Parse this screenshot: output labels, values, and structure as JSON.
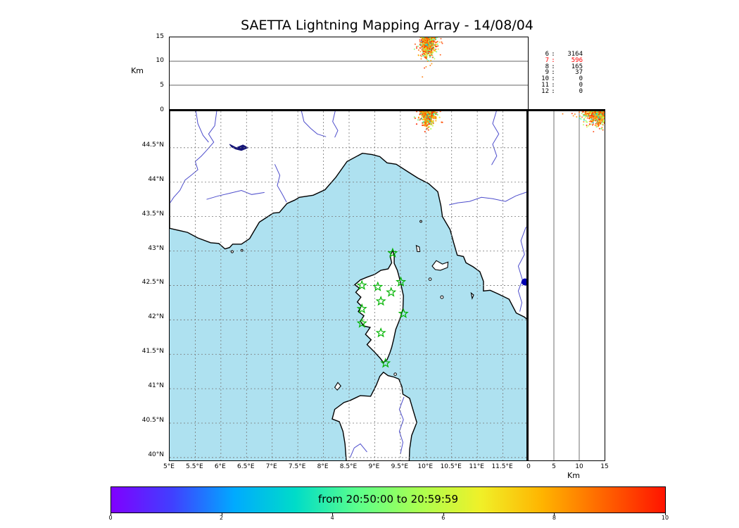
{
  "title": "SAETTA Lightning Mapping Array - 14/08/04",
  "colors": {
    "sea": "#aee1f0",
    "land": "#ffffff",
    "coast": "#000000",
    "river": "#4d4dcc",
    "lake": "#141478",
    "lake_bolsena": "#0000b0",
    "station_star": "#00b400",
    "grid": "#777777",
    "panel_grid": "#333333",
    "highlight_count": "#ff0000",
    "colorbar_stops": [
      "#8000ff",
      "#4040ff",
      "#00aaff",
      "#00dcc8",
      "#5aff8c",
      "#aaff50",
      "#f0f028",
      "#ffb400",
      "#ff6400",
      "#ff1400"
    ]
  },
  "top_panel": {
    "ylabel": "Km",
    "alt_max_km": 15,
    "yticks": [
      {
        "km": 0,
        "label": "0"
      },
      {
        "km": 5,
        "label": "5"
      },
      {
        "km": 10,
        "label": "10"
      },
      {
        "km": 15,
        "label": "15"
      }
    ],
    "grid_km": [
      5,
      10
    ]
  },
  "right_panel": {
    "xlabel": "Km",
    "alt_max_km": 15,
    "xticks": [
      {
        "km": 0,
        "label": "0"
      },
      {
        "km": 5,
        "label": "5"
      },
      {
        "km": 10,
        "label": "10"
      },
      {
        "km": 15,
        "label": "15"
      }
    ],
    "grid_km": [
      5,
      10
    ]
  },
  "map_panel": {
    "lat_ticks": [
      {
        "lat": 44.5,
        "label": "44.5°N"
      },
      {
        "lat": 44,
        "label": "44°N"
      },
      {
        "lat": 43.5,
        "label": "43.5°N"
      },
      {
        "lat": 43,
        "label": "43°N"
      },
      {
        "lat": 42.5,
        "label": "42.5°N"
      },
      {
        "lat": 42,
        "label": "42°N"
      },
      {
        "lat": 41.5,
        "label": "41.5°N"
      },
      {
        "lat": 41,
        "label": "41°N"
      },
      {
        "lat": 40.5,
        "label": "40.5°N"
      },
      {
        "lat": 40,
        "label": "40°N"
      }
    ],
    "lon_ticks": [
      {
        "lon": 5,
        "label": "5°E"
      },
      {
        "lon": 5.5,
        "label": "5.5°E"
      },
      {
        "lon": 6,
        "label": "6°E"
      },
      {
        "lon": 6.5,
        "label": "6.5°E"
      },
      {
        "lon": 7,
        "label": "7°E"
      },
      {
        "lon": 7.5,
        "label": "7.5°E"
      },
      {
        "lon": 8,
        "label": "8°E"
      },
      {
        "lon": 8.5,
        "label": "8.5°E"
      },
      {
        "lon": 9,
        "label": "9°E"
      },
      {
        "lon": 9.5,
        "label": "9.5°E"
      },
      {
        "lon": 10,
        "label": "10°E"
      },
      {
        "lon": 10.5,
        "label": "10.5°E"
      },
      {
        "lon": 11,
        "label": "11°E"
      },
      {
        "lon": 11.5,
        "label": "11.5°E"
      }
    ],
    "grid_step_deg": 0.5
  },
  "station_counts": {
    "rows": [
      {
        "stations": "6",
        "count": "3164",
        "highlight": false
      },
      {
        "stations": "7",
        "count": "596",
        "highlight": true
      },
      {
        "stations": "8",
        "count": "165",
        "highlight": false
      },
      {
        "stations": "9",
        "count": "37",
        "highlight": false
      },
      {
        "stations": "10",
        "count": "0",
        "highlight": false
      },
      {
        "stations": "11",
        "count": "0",
        "highlight": false
      },
      {
        "stations": "12",
        "count": "0",
        "highlight": false
      }
    ]
  },
  "colorbar": {
    "label": "from 20:50:00 to 20:59:59",
    "min": 0,
    "max": 10,
    "ticks": [
      {
        "v": 0,
        "label": "0"
      },
      {
        "v": 2,
        "label": "2"
      },
      {
        "v": 4,
        "label": "4"
      },
      {
        "v": 6,
        "label": "6"
      },
      {
        "v": 8,
        "label": "8"
      },
      {
        "v": 10,
        "label": "10"
      }
    ]
  },
  "chart_data": {
    "type": "scatter",
    "title": "SAETTA Lightning Mapping Array - 14/08/04",
    "time_window": {
      "start": "20:50:00",
      "end": "20:59:59"
    },
    "geo": {
      "lon_range": [
        5,
        12
      ],
      "lat_range": [
        39.95,
        45.05
      ],
      "alt_range_km": [
        0,
        15
      ]
    },
    "station_counts": {
      "6": 3164,
      "7": 596,
      "8": 165,
      "9": 37,
      "10": 0,
      "11": 0,
      "12": 0
    },
    "lightning_cluster": {
      "n": 650,
      "seed": 7,
      "lon_mean": 10.04,
      "lon_sd": 0.07,
      "lat_top": 45.06,
      "lat_sd": 0.1,
      "alt_top_km": 15,
      "alt_sd_km": 1.9,
      "alt_min_km": 6.5,
      "time_mix": [
        {
          "w": 0.65,
          "t0": 0.78,
          "t1": 1.0
        },
        {
          "w": 0.2,
          "t0": 0.52,
          "t1": 0.76
        },
        {
          "w": 0.15,
          "t0": 0.28,
          "t1": 0.52
        }
      ]
    },
    "lma_stations_lonlat": [
      [
        9.35,
        42.97
      ],
      [
        8.75,
        42.5
      ],
      [
        9.06,
        42.48
      ],
      [
        9.51,
        42.55
      ],
      [
        9.32,
        42.4
      ],
      [
        9.12,
        42.27
      ],
      [
        8.75,
        42.16
      ],
      [
        9.56,
        42.09
      ],
      [
        8.75,
        41.95
      ],
      [
        9.12,
        41.81
      ],
      [
        9.21,
        41.37
      ]
    ],
    "lake_bolsena_lonlat": [
      11.93,
      42.55
    ]
  },
  "map_geo": {
    "mainland": [
      [
        5,
        45.1
      ],
      [
        5,
        43.33
      ],
      [
        5.35,
        43.27
      ],
      [
        5.55,
        43.19
      ],
      [
        5.8,
        43.12
      ],
      [
        5.96,
        43.11
      ],
      [
        6.08,
        43.03
      ],
      [
        6.17,
        43.05
      ],
      [
        6.23,
        43.1
      ],
      [
        6.4,
        43.1
      ],
      [
        6.56,
        43.18
      ],
      [
        6.63,
        43.27
      ],
      [
        6.75,
        43.42
      ],
      [
        7.02,
        43.55
      ],
      [
        7.14,
        43.56
      ],
      [
        7.29,
        43.69
      ],
      [
        7.44,
        43.74
      ],
      [
        7.53,
        43.78
      ],
      [
        7.8,
        43.81
      ],
      [
        8.03,
        43.89
      ],
      [
        8.24,
        44.07
      ],
      [
        8.46,
        44.3
      ],
      [
        8.76,
        44.42
      ],
      [
        8.95,
        44.4
      ],
      [
        9.1,
        44.37
      ],
      [
        9.24,
        44.28
      ],
      [
        9.42,
        44.26
      ],
      [
        9.65,
        44.15
      ],
      [
        9.84,
        44.06
      ],
      [
        10.05,
        43.98
      ],
      [
        10.23,
        43.86
      ],
      [
        10.29,
        43.66
      ],
      [
        10.32,
        43.5
      ],
      [
        10.47,
        43.31
      ],
      [
        10.54,
        43.12
      ],
      [
        10.61,
        42.94
      ],
      [
        10.73,
        42.92
      ],
      [
        10.78,
        42.83
      ],
      [
        10.92,
        42.77
      ],
      [
        11.05,
        42.7
      ],
      [
        11.12,
        42.56
      ],
      [
        11.12,
        42.42
      ],
      [
        11.25,
        42.43
      ],
      [
        11.4,
        42.38
      ],
      [
        11.62,
        42.3
      ],
      [
        11.76,
        42.1
      ],
      [
        11.92,
        42.04
      ],
      [
        12.05,
        41.96
      ],
      [
        12.05,
        45.1
      ]
    ],
    "corsica": [
      [
        9.35,
        43.01
      ],
      [
        9.3,
        42.93
      ],
      [
        9.33,
        42.83
      ],
      [
        9.26,
        42.74
      ],
      [
        9.12,
        42.72
      ],
      [
        9.0,
        42.66
      ],
      [
        8.85,
        42.62
      ],
      [
        8.72,
        42.58
      ],
      [
        8.61,
        42.51
      ],
      [
        8.7,
        42.46
      ],
      [
        8.63,
        42.4
      ],
      [
        8.73,
        42.33
      ],
      [
        8.66,
        42.26
      ],
      [
        8.74,
        42.2
      ],
      [
        8.68,
        42.12
      ],
      [
        8.79,
        42.06
      ],
      [
        8.72,
        41.98
      ],
      [
        8.79,
        41.91
      ],
      [
        8.91,
        41.89
      ],
      [
        8.82,
        41.79
      ],
      [
        8.93,
        41.71
      ],
      [
        8.85,
        41.64
      ],
      [
        9.0,
        41.53
      ],
      [
        9.11,
        41.44
      ],
      [
        9.17,
        41.38
      ],
      [
        9.24,
        41.42
      ],
      [
        9.29,
        41.51
      ],
      [
        9.33,
        41.6
      ],
      [
        9.37,
        41.72
      ],
      [
        9.41,
        41.86
      ],
      [
        9.49,
        42.01
      ],
      [
        9.55,
        42.16
      ],
      [
        9.56,
        42.35
      ],
      [
        9.5,
        42.55
      ],
      [
        9.46,
        42.67
      ],
      [
        9.44,
        42.72
      ],
      [
        9.38,
        42.82
      ],
      [
        9.38,
        42.93
      ]
    ],
    "sardinia": [
      [
        8.45,
        39.9
      ],
      [
        8.42,
        40.2
      ],
      [
        8.38,
        40.38
      ],
      [
        8.31,
        40.52
      ],
      [
        8.17,
        40.56
      ],
      [
        8.22,
        40.7
      ],
      [
        8.4,
        40.8
      ],
      [
        8.52,
        40.83
      ],
      [
        8.72,
        40.9
      ],
      [
        8.92,
        40.89
      ],
      [
        9.03,
        41.05
      ],
      [
        9.1,
        41.18
      ],
      [
        9.17,
        41.24
      ],
      [
        9.26,
        41.19
      ],
      [
        9.37,
        41.17
      ],
      [
        9.47,
        41.14
      ],
      [
        9.53,
        41.03
      ],
      [
        9.55,
        40.92
      ],
      [
        9.68,
        40.86
      ],
      [
        9.76,
        40.66
      ],
      [
        9.82,
        40.51
      ],
      [
        9.72,
        40.32
      ],
      [
        9.68,
        40.12
      ],
      [
        9.67,
        39.9
      ]
    ],
    "islands": [
      [
        [
          10.12,
          42.78
        ],
        [
          10.2,
          42.86
        ],
        [
          10.32,
          42.81
        ],
        [
          10.43,
          42.84
        ],
        [
          10.42,
          42.76
        ],
        [
          10.28,
          42.72
        ],
        [
          10.18,
          42.73
        ]
      ],
      [
        [
          9.81,
          43.08
        ],
        [
          9.87,
          43.06
        ],
        [
          9.88,
          42.99
        ],
        [
          9.83,
          42.99
        ]
      ],
      [
        [
          8.22,
          41.02
        ],
        [
          8.28,
          41.09
        ],
        [
          8.34,
          41.04
        ],
        [
          8.27,
          40.98
        ]
      ],
      [
        [
          10.88,
          42.39
        ],
        [
          10.93,
          42.36
        ],
        [
          10.9,
          42.31
        ]
      ]
    ],
    "islands_small": [
      [
        9.9,
        43.43,
        1.4
      ],
      [
        10.08,
        42.59,
        1.8
      ],
      [
        10.31,
        42.33,
        2.0
      ],
      [
        9.4,
        41.21,
        1.8
      ],
      [
        6.22,
        42.99,
        1.6
      ],
      [
        6.41,
        43.01,
        1.4
      ]
    ],
    "lake_serre_poncon": [
      [
        6.17,
        44.55
      ],
      [
        6.3,
        44.5
      ],
      [
        6.43,
        44.54
      ],
      [
        6.53,
        44.5
      ],
      [
        6.4,
        44.46
      ],
      [
        6.29,
        44.48
      ],
      [
        6.21,
        44.51
      ]
    ],
    "rivers": [
      [
        [
          5.93,
          45.1
        ],
        [
          5.88,
          44.82
        ],
        [
          5.76,
          44.7
        ],
        [
          5.86,
          44.58
        ],
        [
          5.72,
          44.46
        ],
        [
          5.62,
          44.38
        ],
        [
          5.5,
          44.3
        ],
        [
          5.55,
          44.18
        ],
        [
          5.42,
          44.1
        ],
        [
          5.3,
          44.03
        ],
        [
          5.2,
          43.88
        ],
        [
          5.08,
          43.78
        ],
        [
          5.01,
          43.7
        ]
      ],
      [
        [
          5.5,
          45.1
        ],
        [
          5.55,
          44.85
        ],
        [
          5.65,
          44.68
        ],
        [
          5.76,
          44.58
        ]
      ],
      [
        [
          6.85,
          43.85
        ],
        [
          6.6,
          43.82
        ],
        [
          6.4,
          43.88
        ],
        [
          6.18,
          43.84
        ],
        [
          5.95,
          43.8
        ],
        [
          5.72,
          43.75
        ]
      ],
      [
        [
          7.05,
          44.26
        ],
        [
          7.15,
          44.1
        ],
        [
          7.1,
          43.95
        ],
        [
          7.2,
          43.82
        ],
        [
          7.28,
          43.71
        ]
      ],
      [
        [
          7.55,
          45.1
        ],
        [
          7.62,
          44.88
        ],
        [
          7.75,
          44.78
        ],
        [
          7.88,
          44.7
        ],
        [
          8.05,
          44.66
        ]
      ],
      [
        [
          8.25,
          45.1
        ],
        [
          8.18,
          44.88
        ],
        [
          8.28,
          44.75
        ],
        [
          8.22,
          44.65
        ]
      ],
      [
        [
          11.98,
          43.86
        ],
        [
          11.75,
          43.8
        ],
        [
          11.55,
          43.72
        ],
        [
          11.3,
          43.76
        ],
        [
          11.08,
          43.78
        ],
        [
          10.85,
          43.72
        ],
        [
          10.62,
          43.7
        ],
        [
          10.45,
          43.67
        ]
      ],
      [
        [
          11.4,
          45.1
        ],
        [
          11.3,
          44.85
        ],
        [
          11.42,
          44.7
        ],
        [
          11.3,
          44.55
        ],
        [
          11.38,
          44.38
        ],
        [
          11.28,
          44.25
        ]
      ],
      [
        [
          11.95,
          43.35
        ],
        [
          11.85,
          43.15
        ],
        [
          11.92,
          42.95
        ],
        [
          11.8,
          42.78
        ],
        [
          11.88,
          42.58
        ],
        [
          11.8,
          42.42
        ],
        [
          11.87,
          42.25
        ],
        [
          11.83,
          42.12
        ]
      ],
      [
        [
          9.57,
          40.88
        ],
        [
          9.48,
          40.7
        ],
        [
          9.56,
          40.55
        ],
        [
          9.48,
          40.38
        ],
        [
          9.55,
          40.22
        ],
        [
          9.5,
          40.05
        ]
      ],
      [
        [
          8.85,
          40.08
        ],
        [
          8.72,
          40.2
        ],
        [
          8.6,
          40.14
        ],
        [
          8.52,
          40.0
        ]
      ]
    ]
  }
}
